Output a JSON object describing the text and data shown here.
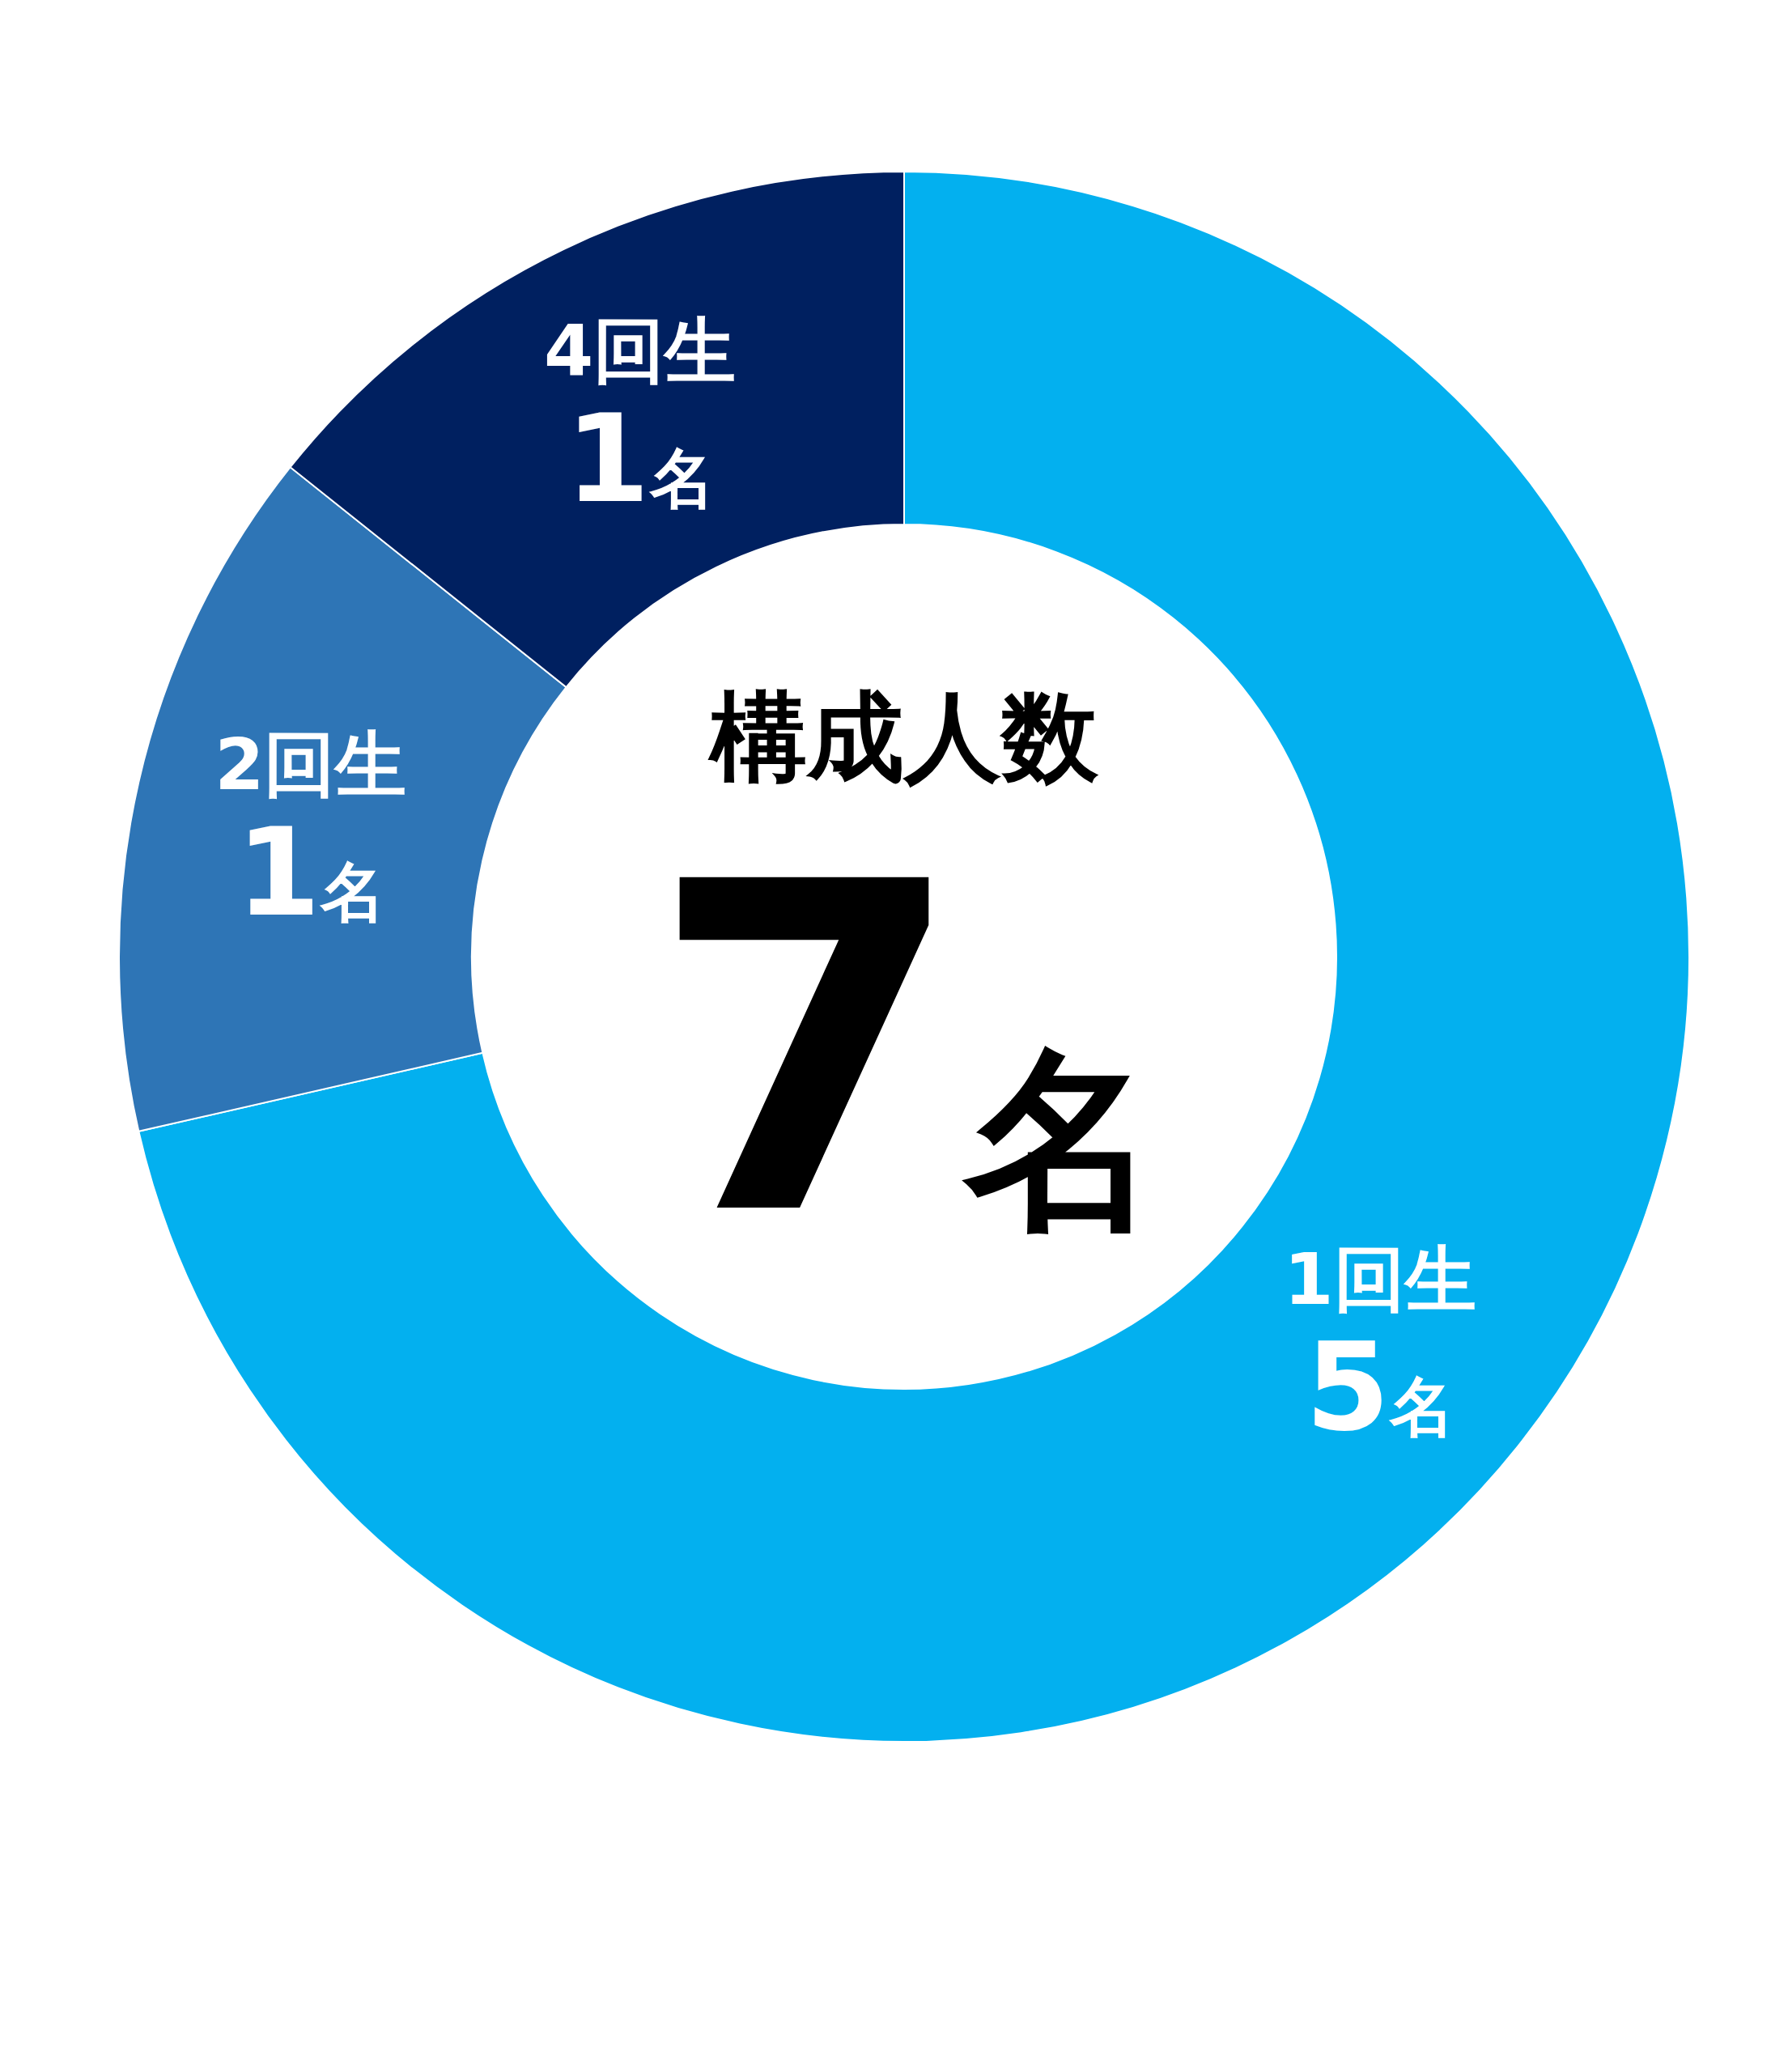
{
  "chart_data": {
    "type": "donut",
    "categories": [
      "1回生",
      "2回生",
      "4回生"
    ],
    "values": [
      5,
      1,
      1
    ],
    "colors": [
      "#03b0ef",
      "#2e75b6",
      "#002060"
    ],
    "value_labels": [
      "5名",
      "1名",
      "1名"
    ],
    "annotations": [
      "構成人数",
      "7名"
    ]
  }
}
